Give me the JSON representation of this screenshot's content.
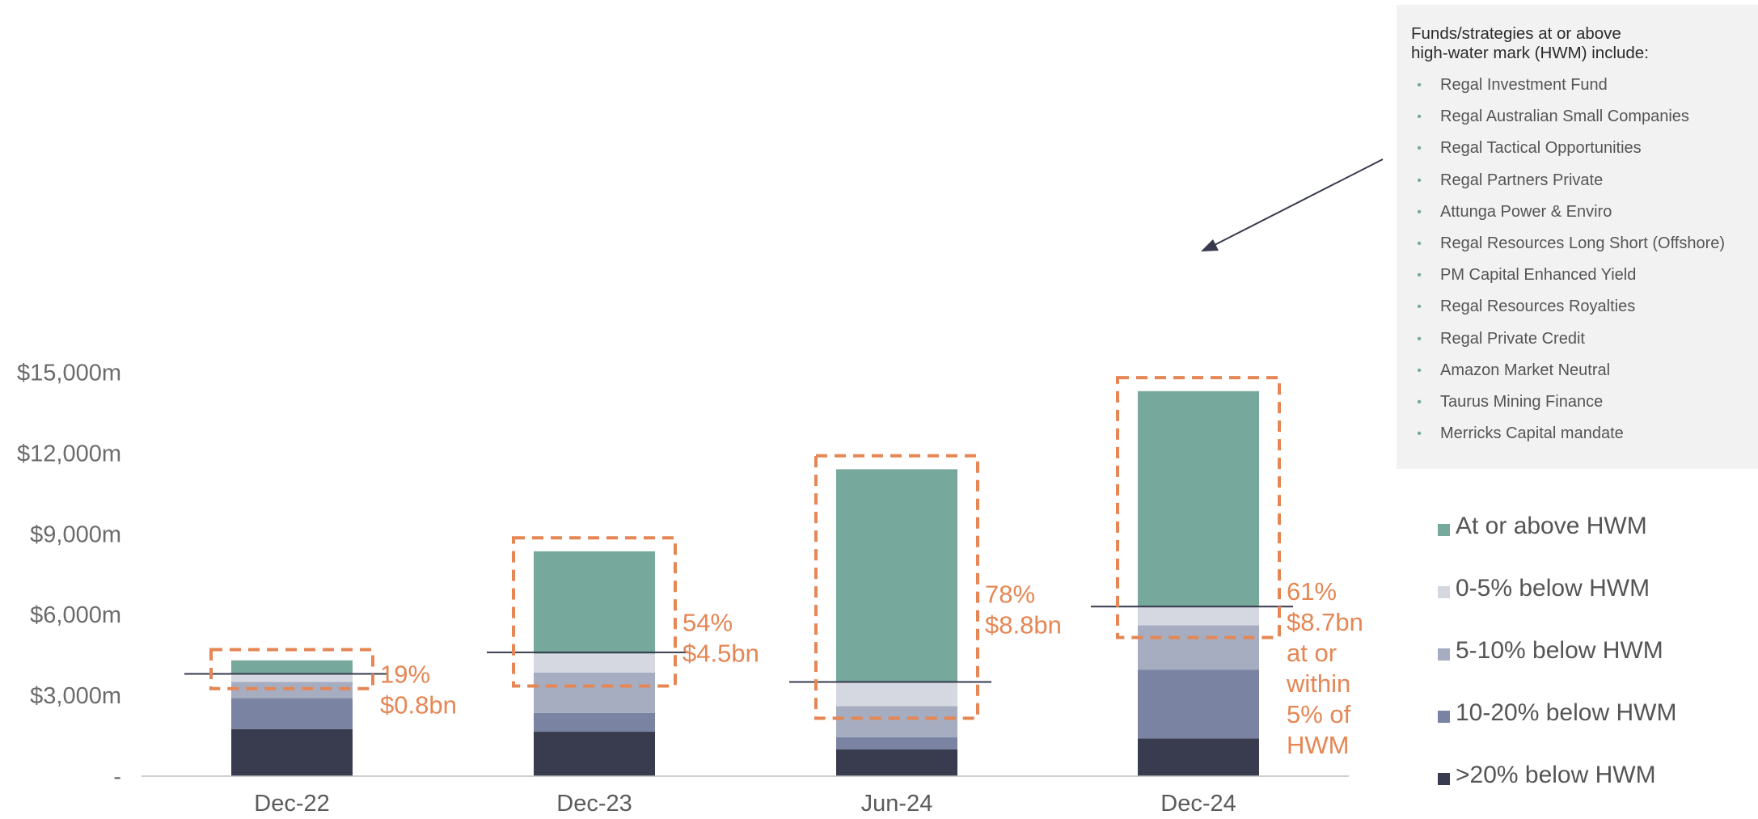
{
  "chart_data": {
    "type": "bar",
    "stacked": true,
    "categories": [
      "Dec-22",
      "Dec-23",
      "Jun-24",
      "Dec-24"
    ],
    "series": [
      {
        "name": ">20% below HWM",
        "color": "#383c4e",
        "values": [
          1750,
          1650,
          1000,
          1400
        ]
      },
      {
        "name": "10-20% below HWM",
        "color": "#7a84a2",
        "values": [
          1150,
          700,
          450,
          2550
        ]
      },
      {
        "name": "5-10% below HWM",
        "color": "#a6adc1",
        "values": [
          600,
          1500,
          1150,
          1650
        ]
      },
      {
        "name": "0-5% below HWM",
        "color": "#d6d8e1",
        "values": [
          300,
          700,
          900,
          700
        ]
      },
      {
        "name": "At or above HWM",
        "color": "#76a89b",
        "values": [
          500,
          3800,
          7900,
          8000
        ]
      }
    ],
    "ylim": [
      0,
      15000
    ],
    "yticks": [
      {
        "value": 0,
        "label": "-"
      },
      {
        "value": 3000,
        "label": "$3,000m"
      },
      {
        "value": 6000,
        "label": "$6,000m"
      },
      {
        "value": 9000,
        "label": "$9,000m"
      },
      {
        "value": 12000,
        "label": "$12,000m"
      },
      {
        "value": 15000,
        "label": "$15,000m"
      }
    ],
    "threshold_lines": [
      3800,
      4600,
      3500,
      6300
    ],
    "highlight_boxes": [
      {
        "from": 3250,
        "to": 4700
      },
      {
        "from": 3350,
        "to": 8850
      },
      {
        "from": 2150,
        "to": 11900
      },
      {
        "from": 5150,
        "to": 14800
      }
    ],
    "annotations": [
      [
        "19%",
        "$0.8bn"
      ],
      [
        "54%",
        "$4.5bn"
      ],
      [
        "78%",
        "$8.8bn"
      ],
      [
        "61%",
        "$8.7bn",
        "at or",
        "within",
        "5% of",
        "HWM"
      ]
    ],
    "colors": {
      "accent": "#e58654",
      "axis": "#bdbdbd",
      "text": "#6b6b6b"
    }
  },
  "info_box": {
    "title": "Funds/strategies at or above\nhigh-water mark (HWM) include:",
    "items": [
      "Regal Investment Fund",
      "Regal Australian Small Companies",
      "Regal Tactical Opportunities",
      "Regal Partners Private",
      "Attunga Power & Enviro",
      "Regal Resources Long Short (Offshore)",
      "PM Capital Enhanced Yield",
      "Regal Resources Royalties",
      "Regal Private Credit",
      "Amazon Market Neutral",
      "Taurus Mining Finance",
      "Merricks Capital mandate"
    ]
  },
  "legend": {
    "items": [
      {
        "label": "At or above HWM",
        "color": "#76a89b"
      },
      {
        "label": "0-5% below HWM",
        "color": "#d6d8e1"
      },
      {
        "label": "5-10% below HWM",
        "color": "#a6adc1"
      },
      {
        "label": "10-20% below HWM",
        "color": "#7a84a2"
      },
      {
        "label": ">20% below HWM",
        "color": "#383c4e"
      }
    ]
  }
}
